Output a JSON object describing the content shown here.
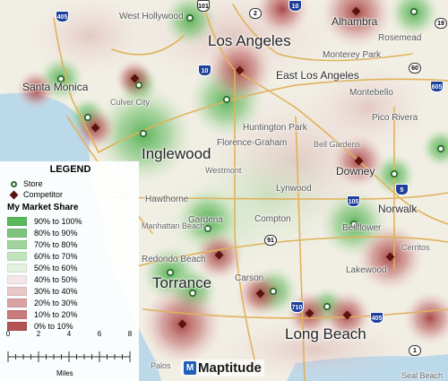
{
  "legend": {
    "title": "LEGEND",
    "store_label": "Store",
    "competitor_label": "Competitor",
    "share_title": "My Market Share",
    "classes": [
      {
        "label": "90% to 100%",
        "color": "#5cb85c"
      },
      {
        "label": "80% to 90%",
        "color": "#7cc47a"
      },
      {
        "label": "70% to 80%",
        "color": "#9fd59c"
      },
      {
        "label": "60% to 70%",
        "color": "#c2e4bd"
      },
      {
        "label": "50% to 60%",
        "color": "#e3f1df"
      },
      {
        "label": "40% to 50%",
        "color": "#f4e7e7"
      },
      {
        "label": "30% to 40%",
        "color": "#e9c8c8"
      },
      {
        "label": "20% to 30%",
        "color": "#dba2a2"
      },
      {
        "label": "10% to 20%",
        "color": "#c97a7a"
      },
      {
        "label": "0% to 10%",
        "color": "#b25252"
      }
    ]
  },
  "scale": {
    "ticks": [
      "0",
      "2",
      "4",
      "6",
      "8"
    ],
    "units": "Miles"
  },
  "logo": "Maptitude",
  "colors": {
    "store": "#2e6b30",
    "competitor": "#5a1410",
    "water": "#bcd9ea",
    "land": "#f1eee4"
  },
  "places": {
    "los_angeles": "Los Angeles",
    "west_hollywood": "West Hollywood",
    "alhambra": "Alhambra",
    "rosemead": "Rosemead",
    "monterey_park": "Monterey Park",
    "east_los_angeles": "East Los Angeles",
    "montebello": "Montebello",
    "pico_rivera": "Pico Rivera",
    "santa_monica": "Santa Monica",
    "culver_city": "Culver City",
    "huntington_park": "Huntington Park",
    "florence_graham": "Florence-Graham",
    "bell_gardens": "Bell Gardens",
    "inglewood": "Inglewood",
    "westmont": "Westmont",
    "downey": "Downey",
    "norwalk": "Norwalk",
    "hawthorne": "Hawthorne",
    "lynwood": "Lynwood",
    "gardena": "Gardena",
    "compton": "Compton",
    "bellflower": "Bellflower",
    "manhattan_beach": "Manhattan Beach",
    "cerritos": "Cerritos",
    "redondo_beach": "Redondo Beach",
    "lakewood": "Lakewood",
    "torrance": "Torrance",
    "carson": "Carson",
    "long_beach": "Long Beach",
    "palos": "Palos",
    "seal_beach": "Seal Beach"
  },
  "shields": {
    "i405_n": "405",
    "us101": "101",
    "sr2": "2",
    "i10_w": "10",
    "i10_e": "10",
    "sr19": "19",
    "i605": "605",
    "sr60": "60",
    "i105": "105",
    "i5": "5",
    "sr91": "91",
    "i710": "710",
    "i405_s": "405",
    "sr1": "1"
  }
}
